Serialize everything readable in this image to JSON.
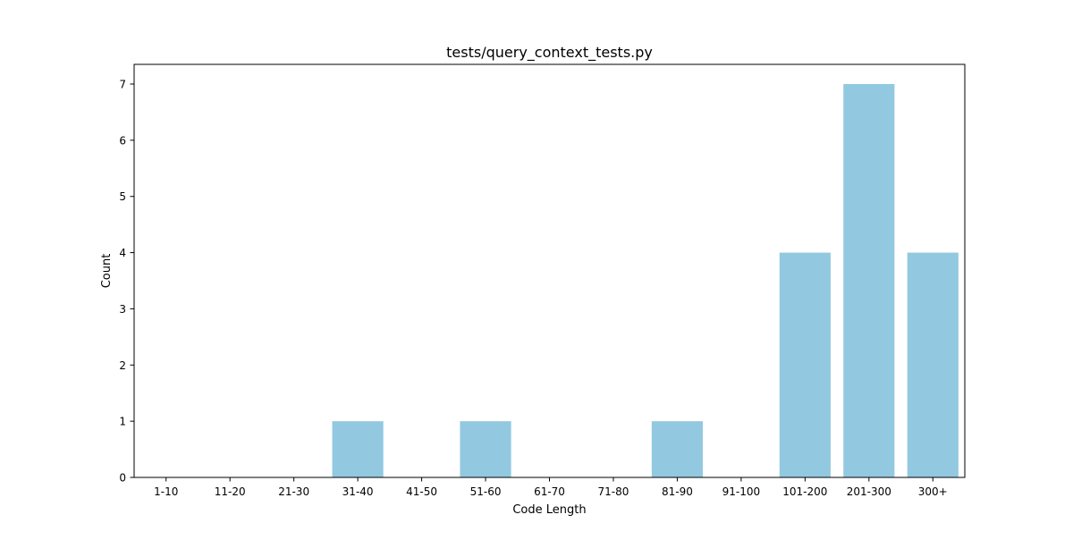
{
  "chart_data": {
    "type": "bar",
    "title": "tests/query_context_tests.py",
    "xlabel": "Code Length",
    "ylabel": "Count",
    "categories": [
      "1-10",
      "11-20",
      "21-30",
      "31-40",
      "41-50",
      "51-60",
      "61-70",
      "71-80",
      "81-90",
      "91-100",
      "101-200",
      "201-300",
      "300+"
    ],
    "values": [
      0,
      0,
      0,
      1,
      0,
      1,
      0,
      0,
      1,
      0,
      4,
      7,
      4
    ],
    "ylim": [
      0,
      7.35
    ],
    "yticks": [
      0,
      1,
      2,
      3,
      4,
      5,
      6,
      7
    ],
    "bar_color": "#92c9e0",
    "grid": false,
    "legend": "none"
  }
}
